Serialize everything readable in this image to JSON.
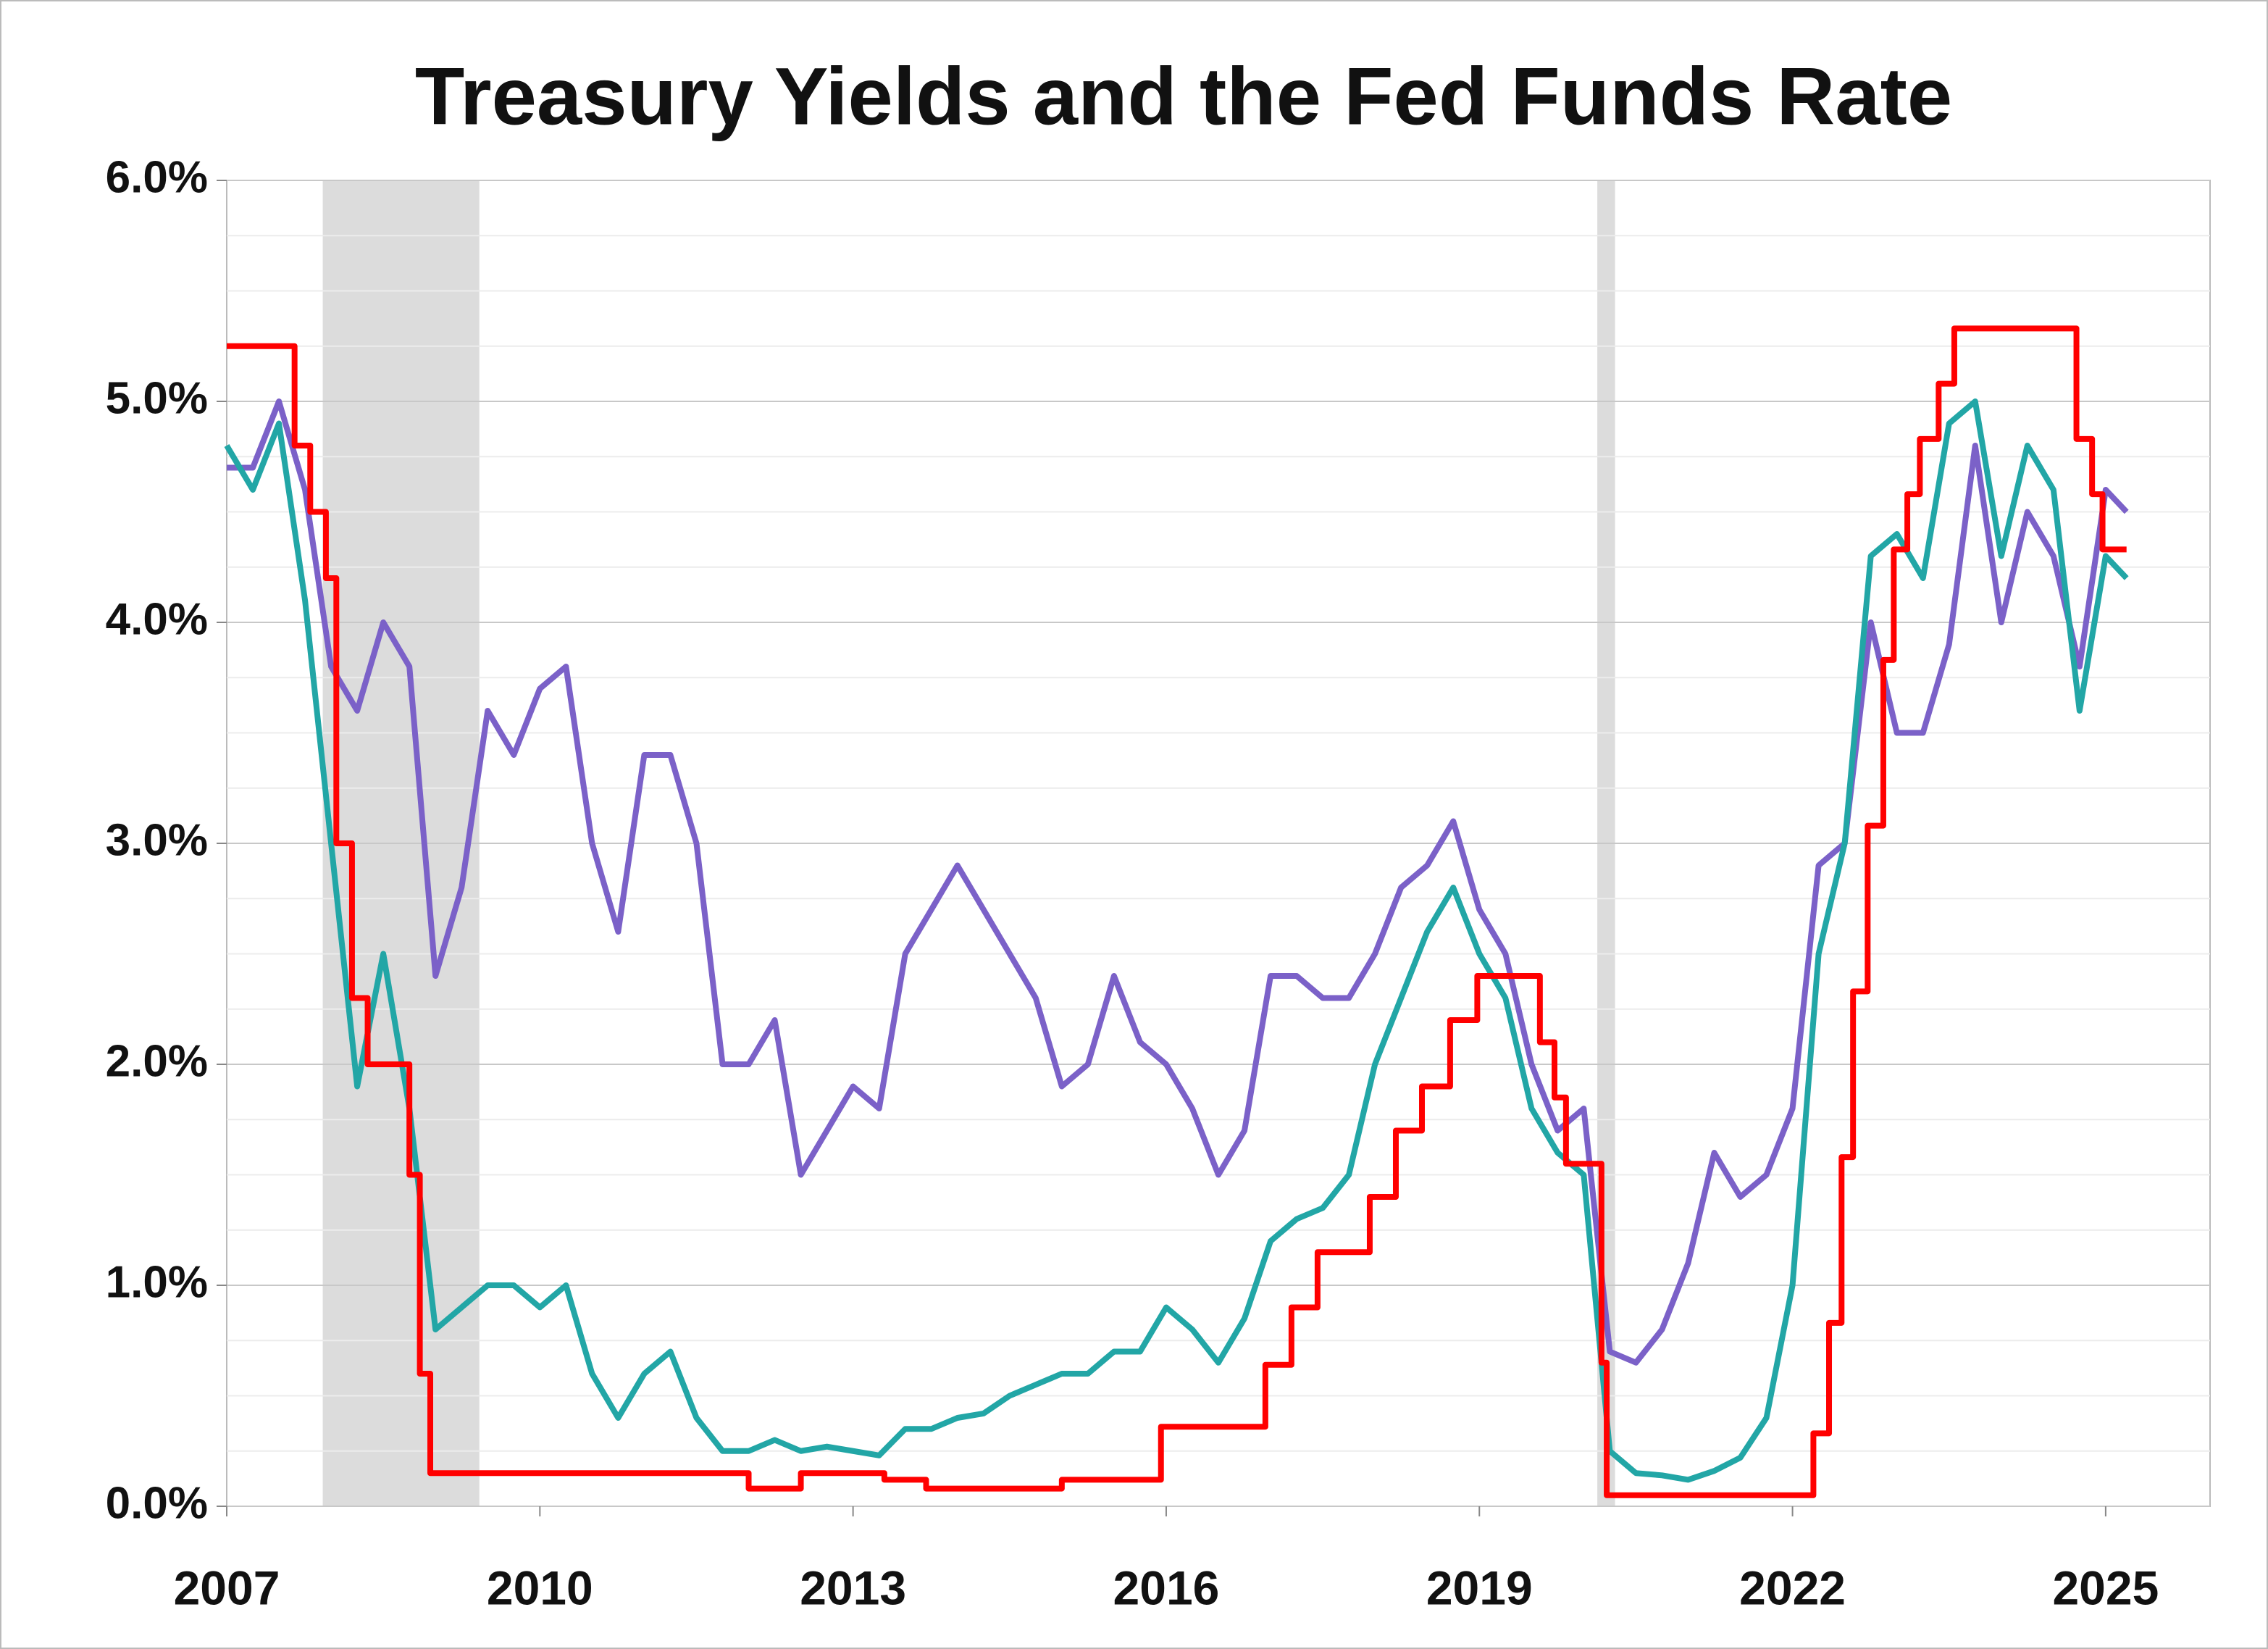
{
  "chart_data": {
    "type": "line",
    "title": "Treasury Yields and the Fed Funds Rate",
    "xlim": [
      2007,
      2026
    ],
    "xticks": [
      2007,
      2010,
      2013,
      2016,
      2019,
      2022,
      2025
    ],
    "ylim": [
      0,
      6
    ],
    "yticks": [
      {
        "value": 0,
        "label": "0.0%"
      },
      {
        "value": 1,
        "label": "1.0%"
      },
      {
        "value": 2,
        "label": "2.0%"
      },
      {
        "value": 3,
        "label": "3.0%"
      },
      {
        "value": 4,
        "label": "4.0%"
      },
      {
        "value": 5,
        "label": "5.0%"
      },
      {
        "value": 6,
        "label": "6.0%"
      }
    ],
    "minor_yticks": [
      0.25,
      0.5,
      0.75,
      1.25,
      1.5,
      1.75,
      2.25,
      2.5,
      2.75,
      3.25,
      3.5,
      3.75,
      4.25,
      4.5,
      4.75,
      5.25,
      5.5,
      5.75
    ],
    "grid": true,
    "shaded_regions": [
      [
        2007.92,
        2009.42
      ],
      [
        2020.13,
        2020.3
      ]
    ],
    "shade_color": "#dcdcdc",
    "series": [
      {
        "color": "#7b61c8",
        "x": [
          2007,
          2007.25,
          2007.5,
          2007.75,
          2008,
          2008.25,
          2008.5,
          2008.75,
          2009,
          2009.25,
          2009.5,
          2009.75,
          2010,
          2010.25,
          2010.5,
          2010.75,
          2011,
          2011.25,
          2011.5,
          2011.75,
          2012,
          2012.25,
          2012.5,
          2012.75,
          2013,
          2013.25,
          2013.5,
          2013.75,
          2014,
          2014.25,
          2014.5,
          2014.75,
          2015,
          2015.25,
          2015.5,
          2015.75,
          2016,
          2016.25,
          2016.5,
          2016.75,
          2017,
          2017.25,
          2017.5,
          2017.75,
          2018,
          2018.25,
          2018.5,
          2018.75,
          2019,
          2019.25,
          2019.5,
          2019.75,
          2020,
          2020.25,
          2020.5,
          2020.75,
          2021,
          2021.25,
          2021.5,
          2021.75,
          2022,
          2022.25,
          2022.5,
          2022.75,
          2023,
          2023.25,
          2023.5,
          2023.75,
          2024,
          2024.25,
          2024.5,
          2024.75,
          2025,
          2025.2
        ],
        "values": [
          4.7,
          4.7,
          5.0,
          4.6,
          3.8,
          3.6,
          4.0,
          3.8,
          2.4,
          2.8,
          3.6,
          3.4,
          3.7,
          3.8,
          3.0,
          2.6,
          3.4,
          3.4,
          3.0,
          2.0,
          2.0,
          2.2,
          1.5,
          1.7,
          1.9,
          1.8,
          2.5,
          2.7,
          2.9,
          2.7,
          2.5,
          2.3,
          1.9,
          2.0,
          2.4,
          2.1,
          2.0,
          1.8,
          1.5,
          1.7,
          2.4,
          2.4,
          2.3,
          2.3,
          2.5,
          2.8,
          2.9,
          3.1,
          2.7,
          2.5,
          2.0,
          1.7,
          1.8,
          0.7,
          0.65,
          0.8,
          1.1,
          1.6,
          1.4,
          1.5,
          1.8,
          2.9,
          3.0,
          4.0,
          3.5,
          3.5,
          3.9,
          4.8,
          4.0,
          4.5,
          4.3,
          3.8,
          4.6,
          4.5
        ]
      },
      {
        "color": "#22a6a6",
        "x": [
          2007,
          2007.25,
          2007.5,
          2007.75,
          2008,
          2008.25,
          2008.5,
          2008.75,
          2009,
          2009.25,
          2009.5,
          2009.75,
          2010,
          2010.25,
          2010.5,
          2010.75,
          2011,
          2011.25,
          2011.5,
          2011.75,
          2012,
          2012.25,
          2012.5,
          2012.75,
          2013,
          2013.25,
          2013.5,
          2013.75,
          2014,
          2014.25,
          2014.5,
          2014.75,
          2015,
          2015.25,
          2015.5,
          2015.75,
          2016,
          2016.25,
          2016.5,
          2016.75,
          2017,
          2017.25,
          2017.5,
          2017.75,
          2018,
          2018.25,
          2018.5,
          2018.75,
          2019,
          2019.25,
          2019.5,
          2019.75,
          2020,
          2020.25,
          2020.5,
          2020.75,
          2021,
          2021.25,
          2021.5,
          2021.75,
          2022,
          2022.25,
          2022.5,
          2022.75,
          2023,
          2023.25,
          2023.5,
          2023.75,
          2024,
          2024.25,
          2024.5,
          2024.75,
          2025,
          2025.2
        ],
        "values": [
          4.8,
          4.6,
          4.9,
          4.1,
          3.0,
          1.9,
          2.5,
          1.8,
          0.8,
          0.9,
          1.0,
          1.0,
          0.9,
          1.0,
          0.6,
          0.4,
          0.6,
          0.7,
          0.4,
          0.25,
          0.25,
          0.3,
          0.25,
          0.27,
          0.25,
          0.23,
          0.35,
          0.35,
          0.4,
          0.42,
          0.5,
          0.55,
          0.6,
          0.6,
          0.7,
          0.7,
          0.9,
          0.8,
          0.65,
          0.85,
          1.2,
          1.3,
          1.35,
          1.5,
          2.0,
          2.3,
          2.6,
          2.8,
          2.5,
          2.3,
          1.8,
          1.6,
          1.5,
          0.25,
          0.15,
          0.14,
          0.12,
          0.16,
          0.22,
          0.4,
          1.0,
          2.5,
          3.0,
          4.3,
          4.4,
          4.2,
          4.9,
          5.0,
          4.3,
          4.8,
          4.6,
          3.6,
          4.3,
          4.2
        ]
      },
      {
        "color": "#ff0000",
        "step": true,
        "x": [
          2007,
          2007.65,
          2007.8,
          2007.95,
          2008.05,
          2008.2,
          2008.35,
          2008.75,
          2008.85,
          2008.95,
          2010,
          2012,
          2012.5,
          2013.3,
          2013.7,
          2015,
          2015.95,
          2016.95,
          2017.2,
          2017.45,
          2017.95,
          2018.2,
          2018.45,
          2018.72,
          2018.98,
          2019.58,
          2019.72,
          2019.83,
          2020.17,
          2020.22,
          2022.2,
          2022.35,
          2022.47,
          2022.58,
          2022.72,
          2022.87,
          2022.97,
          2023.1,
          2023.22,
          2023.4,
          2023.55,
          2024.72,
          2024.87,
          2024.97,
          2025.2
        ],
        "values": [
          5.25,
          4.8,
          4.5,
          4.2,
          3.0,
          2.3,
          2.0,
          1.5,
          0.6,
          0.15,
          0.15,
          0.08,
          0.15,
          0.12,
          0.08,
          0.12,
          0.36,
          0.64,
          0.9,
          1.15,
          1.4,
          1.7,
          1.9,
          2.2,
          2.4,
          2.1,
          1.85,
          1.55,
          0.65,
          0.05,
          0.33,
          0.83,
          1.58,
          2.33,
          3.08,
          3.83,
          4.33,
          4.58,
          4.83,
          5.08,
          5.33,
          4.83,
          4.58,
          4.33,
          4.33
        ]
      }
    ]
  }
}
